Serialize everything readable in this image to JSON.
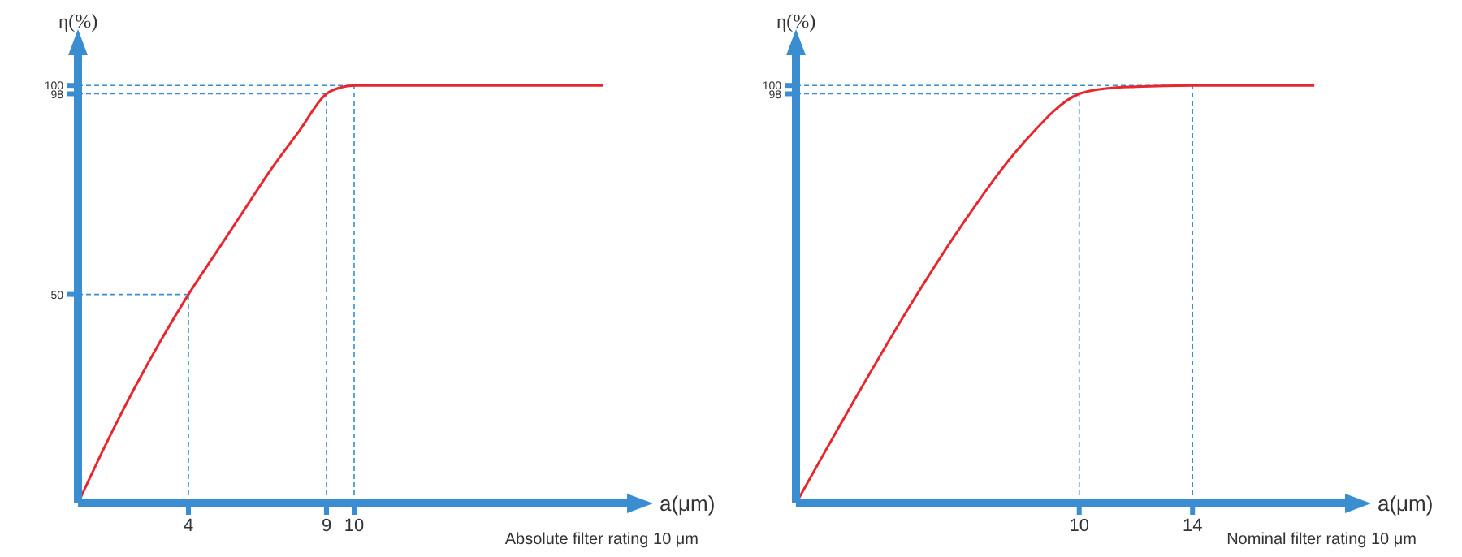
{
  "chart_data": [
    {
      "type": "line",
      "xlabel": "a(μm)",
      "ylabel": "η(%)",
      "annotations": [
        "Absolute filter rating 10 μm"
      ],
      "x": [
        0,
        1,
        2,
        3,
        4,
        5,
        6,
        7,
        8,
        9,
        9.5,
        10,
        19
      ],
      "series": [
        {
          "color": "#e8262d",
          "values": [
            0,
            14,
            27,
            39,
            50,
            60,
            70,
            80,
            89,
            98,
            99.5,
            100,
            100
          ]
        }
      ],
      "xlim": [
        0,
        20
      ],
      "ylim": [
        0,
        108
      ],
      "xticks": [
        4,
        9,
        10
      ],
      "yticks": [
        50,
        98,
        100
      ],
      "grid": false,
      "legend": false,
      "marker": "none",
      "line_style": "solid",
      "ref_lines": [
        {
          "axis": "x",
          "value": 4,
          "color": "#3a8dd0",
          "line_style": "dashed"
        },
        {
          "axis": "x",
          "value": 9,
          "color": "#3a8dd0",
          "line_style": "dashed"
        },
        {
          "axis": "x",
          "value": 10,
          "color": "#3a8dd0",
          "line_style": "dashed"
        },
        {
          "axis": "y",
          "value": 50,
          "color": "#3a8dd0",
          "line_style": "dashed"
        },
        {
          "axis": "y",
          "value": 98,
          "color": "#3a8dd0",
          "line_style": "dashed"
        },
        {
          "axis": "y",
          "value": 100,
          "color": "#3a8dd0",
          "line_style": "dashed"
        }
      ]
    },
    {
      "type": "line",
      "xlabel": "a(μm)",
      "ylabel": "η(%)",
      "annotations": [
        "Nominal filter rating 10 μm"
      ],
      "x": [
        0,
        2,
        4,
        6,
        8,
        10,
        11,
        12,
        14,
        18.3
      ],
      "series": [
        {
          "color": "#e8262d",
          "values": [
            0,
            24,
            47,
            68,
            86,
            98,
            99.3,
            99.7,
            100,
            100
          ]
        }
      ],
      "xlim": [
        0,
        19.5
      ],
      "ylim": [
        0,
        108
      ],
      "xticks": [
        10,
        14
      ],
      "yticks": [
        98,
        100
      ],
      "grid": false,
      "legend": false,
      "marker": "none",
      "line_style": "solid",
      "ref_lines": [
        {
          "axis": "x",
          "value": 10,
          "color": "#3a8dd0",
          "line_style": "dashed"
        },
        {
          "axis": "x",
          "value": 14,
          "color": "#3a8dd0",
          "line_style": "dashed"
        },
        {
          "axis": "y",
          "value": 98,
          "color": "#3a8dd0",
          "line_style": "dashed"
        },
        {
          "axis": "y",
          "value": 100,
          "color": "#3a8dd0",
          "line_style": "dashed"
        }
      ]
    }
  ]
}
